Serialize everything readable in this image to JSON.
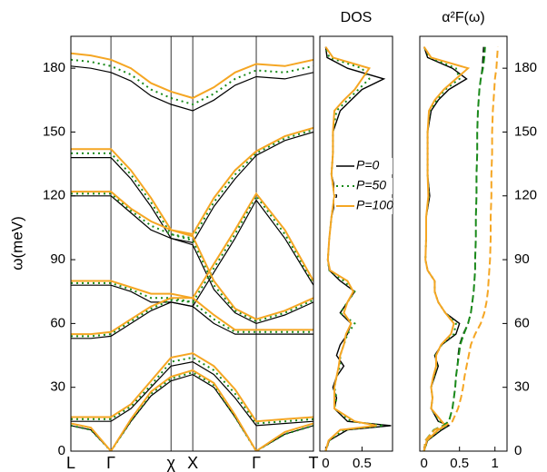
{
  "chart_data": [
    {
      "type": "line",
      "y_label": "ω(meV)",
      "ylim": [
        0,
        195
      ],
      "yticks": [
        0,
        30,
        60,
        90,
        120,
        150,
        180
      ],
      "xlim": [
        0,
        4.24
      ],
      "xticks": [
        {
          "value": 0,
          "label": "L"
        },
        {
          "value": 0.7,
          "label": "Γ"
        },
        {
          "value": 1.75,
          "label": "χ"
        },
        {
          "value": 2.13,
          "label": "X"
        },
        {
          "value": 3.24,
          "label": "Γ"
        },
        {
          "value": 4.24,
          "label": "T"
        }
      ],
      "grid": true,
      "x": [
        0,
        0.35,
        0.7,
        1.05,
        1.4,
        1.75,
        2.13,
        2.5,
        2.87,
        3.24,
        3.74,
        4.24
      ],
      "series": [
        {
          "color": "#000000",
          "style": "solid",
          "values": [
            12,
            10,
            0,
            14,
            26,
            33,
            36,
            30,
            16,
            0,
            8,
            12
          ]
        },
        {
          "color": "#000000",
          "style": "solid",
          "values": [
            14,
            14,
            14,
            20,
            30,
            40,
            42,
            36,
            25,
            12,
            13,
            14
          ]
        },
        {
          "color": "#000000",
          "style": "solid",
          "values": [
            53,
            53,
            54,
            60,
            66,
            70,
            68,
            60,
            55,
            55,
            55,
            55
          ]
        },
        {
          "color": "#000000",
          "style": "solid",
          "values": [
            78,
            78,
            78,
            75,
            70,
            70,
            68,
            84,
            100,
            118,
            100,
            78
          ]
        },
        {
          "color": "#000000",
          "style": "solid",
          "values": [
            120,
            120,
            120,
            112,
            104,
            100,
            97,
            76,
            65,
            60,
            64,
            70
          ]
        },
        {
          "color": "#000000",
          "style": "solid",
          "values": [
            138,
            138,
            138,
            128,
            115,
            100,
            98,
            115,
            128,
            139,
            146,
            150
          ]
        },
        {
          "color": "#000000",
          "style": "solid",
          "values": [
            181,
            180,
            178,
            174,
            167,
            163,
            160,
            165,
            172,
            176,
            175,
            178
          ]
        },
        {
          "color": "#1a8a1a",
          "style": "dotted",
          "values": [
            12,
            10,
            0,
            14,
            27,
            34,
            37,
            31,
            16,
            0,
            8,
            12
          ]
        },
        {
          "color": "#1a8a1a",
          "style": "dotted",
          "values": [
            15,
            15,
            15,
            21,
            31,
            42,
            44,
            38,
            27,
            13,
            14,
            15
          ]
        },
        {
          "color": "#1a8a1a",
          "style": "dotted",
          "values": [
            54,
            54,
            55,
            61,
            67,
            71,
            70,
            62,
            56,
            56,
            56,
            56
          ]
        },
        {
          "color": "#1a8a1a",
          "style": "dotted",
          "values": [
            79,
            79,
            79,
            76,
            72,
            72,
            70,
            86,
            102,
            120,
            102,
            79
          ]
        },
        {
          "color": "#1a8a1a",
          "style": "dotted",
          "values": [
            121,
            121,
            121,
            113,
            106,
            102,
            99,
            78,
            66,
            61,
            65,
            71
          ]
        },
        {
          "color": "#1a8a1a",
          "style": "dotted",
          "values": [
            140,
            140,
            140,
            130,
            117,
            102,
            100,
            117,
            130,
            140,
            147,
            151
          ]
        },
        {
          "color": "#1a8a1a",
          "style": "dotted",
          "values": [
            184,
            183,
            181,
            177,
            170,
            166,
            163,
            168,
            175,
            179,
            178,
            181
          ]
        },
        {
          "color": "#f5a623",
          "style": "solid",
          "values": [
            13,
            11,
            0,
            15,
            28,
            35,
            38,
            32,
            17,
            0,
            9,
            13
          ]
        },
        {
          "color": "#f5a623",
          "style": "solid",
          "values": [
            16,
            16,
            16,
            22,
            33,
            44,
            46,
            40,
            29,
            14,
            15,
            16
          ]
        },
        {
          "color": "#f5a623",
          "style": "solid",
          "values": [
            55,
            55,
            56,
            62,
            68,
            72,
            72,
            64,
            57,
            57,
            57,
            57
          ]
        },
        {
          "color": "#f5a623",
          "style": "solid",
          "values": [
            80,
            80,
            80,
            77,
            74,
            74,
            72,
            88,
            104,
            121,
            104,
            80
          ]
        },
        {
          "color": "#f5a623",
          "style": "solid",
          "values": [
            122,
            122,
            122,
            114,
            108,
            104,
            101,
            80,
            67,
            62,
            66,
            72
          ]
        },
        {
          "color": "#f5a623",
          "style": "solid",
          "values": [
            142,
            142,
            142,
            132,
            119,
            104,
            102,
            119,
            132,
            141,
            148,
            152
          ]
        },
        {
          "color": "#f5a623",
          "style": "solid",
          "values": [
            187,
            186,
            184,
            180,
            173,
            169,
            166,
            171,
            178,
            182,
            181,
            184
          ]
        }
      ]
    },
    {
      "type": "hline",
      "title": "DOS",
      "ylim": [
        0,
        195
      ],
      "xlim": [
        -0.08,
        0.92
      ],
      "xticks": [
        0,
        0.5
      ],
      "legend": "right",
      "y": [
        0,
        5,
        10,
        12,
        14,
        20,
        25,
        30,
        35,
        40,
        45,
        50,
        55,
        60,
        65,
        70,
        75,
        80,
        85,
        90,
        100,
        110,
        120,
        130,
        140,
        150,
        160,
        165,
        170,
        175,
        180,
        185,
        190
      ],
      "series": [
        {
          "name": "P=0",
          "color": "#000000",
          "style": "solid",
          "values": [
            0,
            0.05,
            0.3,
            0.9,
            0.3,
            0.12,
            0.15,
            0.1,
            0.15,
            0.25,
            0.15,
            0.2,
            0.3,
            0.35,
            0.2,
            0.3,
            0.4,
            0.2,
            0.05,
            0.03,
            0.05,
            0.08,
            0.15,
            0.08,
            0.1,
            0.1,
            0.2,
            0.35,
            0.5,
            0.8,
            0.3,
            0.02,
            0
          ]
        },
        {
          "name": "P=50",
          "color": "#1a8a1a",
          "style": "dotted",
          "values": [
            0,
            0.05,
            0.25,
            0.8,
            0.35,
            0.12,
            0.15,
            0.12,
            0.15,
            0.2,
            0.2,
            0.25,
            0.3,
            0.4,
            0.2,
            0.3,
            0.4,
            0.25,
            0.05,
            0.03,
            0.05,
            0.08,
            0.12,
            0.08,
            0.1,
            0.1,
            0.15,
            0.3,
            0.45,
            0.6,
            0.5,
            0.05,
            0
          ]
        },
        {
          "name": "P=100",
          "color": "#f5a623",
          "style": "solid",
          "values": [
            0,
            0.04,
            0.2,
            0.7,
            0.4,
            0.12,
            0.12,
            0.12,
            0.15,
            0.18,
            0.2,
            0.25,
            0.28,
            0.35,
            0.25,
            0.3,
            0.38,
            0.3,
            0.06,
            0.03,
            0.05,
            0.08,
            0.12,
            0.08,
            0.1,
            0.1,
            0.12,
            0.25,
            0.4,
            0.5,
            0.6,
            0.1,
            0
          ]
        }
      ]
    },
    {
      "type": "hline",
      "title": "α²F(ω)",
      "ylim": [
        0,
        195
      ],
      "yticks": [
        0,
        30,
        60,
        90,
        120,
        150,
        180
      ],
      "ytick_side": "right",
      "xlim": [
        -0.06,
        1.17
      ],
      "xticks": [
        0,
        0.5,
        1
      ],
      "y": [
        0,
        5,
        10,
        12,
        14,
        20,
        25,
        30,
        35,
        40,
        45,
        50,
        55,
        60,
        65,
        70,
        75,
        80,
        85,
        90,
        100,
        110,
        120,
        130,
        140,
        150,
        160,
        165,
        170,
        175,
        180,
        185,
        190
      ],
      "series": [
        {
          "color": "#000000",
          "style": "solid",
          "values": [
            0,
            0.05,
            0.25,
            0.35,
            0.2,
            0.1,
            0.12,
            0.1,
            0.15,
            0.2,
            0.15,
            0.25,
            0.45,
            0.5,
            0.3,
            0.2,
            0.15,
            0.15,
            0.05,
            0.02,
            0.03,
            0.03,
            0.08,
            0.05,
            0.05,
            0.05,
            0.1,
            0.2,
            0.35,
            0.6,
            0.4,
            0.05,
            0
          ]
        },
        {
          "color": "#1a8a1a",
          "style": "dotted",
          "values": [
            0,
            0.05,
            0.22,
            0.33,
            0.22,
            0.1,
            0.12,
            0.1,
            0.14,
            0.18,
            0.16,
            0.25,
            0.42,
            0.45,
            0.3,
            0.2,
            0.15,
            0.15,
            0.05,
            0.02,
            0.03,
            0.03,
            0.07,
            0.05,
            0.05,
            0.05,
            0.08,
            0.18,
            0.3,
            0.5,
            0.45,
            0.08,
            0
          ]
        },
        {
          "color": "#f5a623",
          "style": "solid",
          "values": [
            0,
            0.04,
            0.2,
            0.3,
            0.25,
            0.1,
            0.12,
            0.1,
            0.13,
            0.17,
            0.17,
            0.24,
            0.38,
            0.42,
            0.3,
            0.2,
            0.15,
            0.15,
            0.05,
            0.02,
            0.03,
            0.03,
            0.06,
            0.05,
            0.05,
            0.05,
            0.07,
            0.15,
            0.28,
            0.45,
            0.62,
            0.1,
            0
          ]
        },
        {
          "color": "#000000",
          "style": "dashed",
          "values": [
            0,
            0.02,
            0.15,
            0.28,
            0.35,
            0.4,
            0.42,
            0.44,
            0.45,
            0.47,
            0.48,
            0.5,
            0.55,
            0.62,
            0.66,
            0.68,
            0.7,
            0.71,
            0.72,
            0.72,
            0.73,
            0.73,
            0.74,
            0.74,
            0.75,
            0.75,
            0.76,
            0.77,
            0.78,
            0.8,
            0.82,
            0.83,
            0.84
          ]
        },
        {
          "color": "#1a8a1a",
          "style": "dashed",
          "values": [
            0,
            0.02,
            0.14,
            0.27,
            0.35,
            0.4,
            0.42,
            0.44,
            0.45,
            0.47,
            0.49,
            0.51,
            0.56,
            0.62,
            0.66,
            0.68,
            0.7,
            0.71,
            0.72,
            0.72,
            0.73,
            0.73,
            0.74,
            0.74,
            0.75,
            0.75,
            0.76,
            0.77,
            0.78,
            0.8,
            0.83,
            0.85,
            0.86
          ]
        },
        {
          "color": "#f5a623",
          "style": "dashed",
          "values": [
            0,
            0.02,
            0.15,
            0.3,
            0.4,
            0.48,
            0.52,
            0.55,
            0.57,
            0.6,
            0.63,
            0.66,
            0.72,
            0.8,
            0.85,
            0.88,
            0.9,
            0.91,
            0.92,
            0.93,
            0.94,
            0.94,
            0.95,
            0.95,
            0.96,
            0.96,
            0.97,
            0.98,
            0.99,
            1.0,
            1.02,
            1.03,
            1.04
          ]
        }
      ]
    }
  ]
}
